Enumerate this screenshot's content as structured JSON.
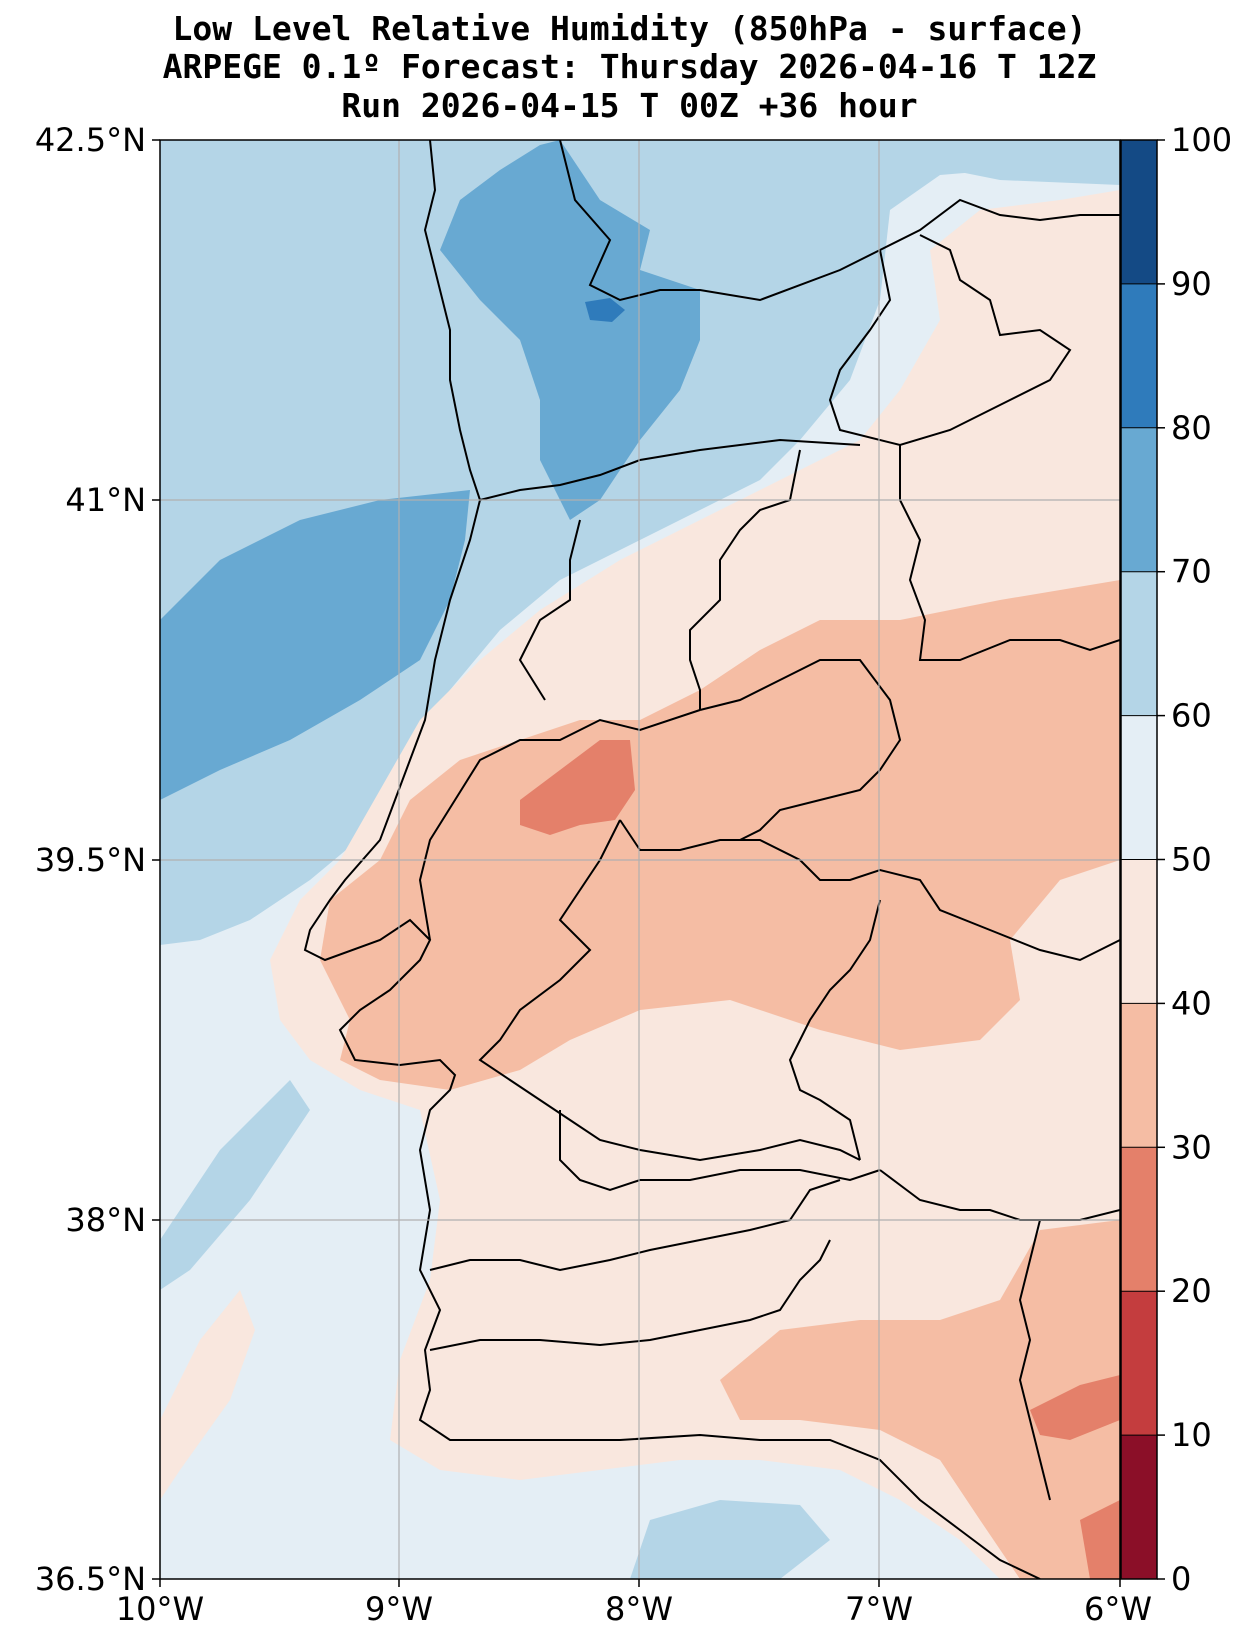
{
  "title": {
    "line1": "Low Level Relative Humidity (850hPa - surface)",
    "line2": "ARPEGE 0.1º Forecast: Thursday 2026-04-16 T 12Z",
    "line3": "Run 2026-04-15 T 00Z +36 hour"
  },
  "axes": {
    "lon_ticks": [
      "10°W",
      "9°W",
      "8°W",
      "7°W",
      "6°W"
    ],
    "lat_ticks": [
      "42.5°N",
      "41°N",
      "39.5°N",
      "38°N",
      "36.5°N"
    ],
    "lon_range": [
      -10,
      -6
    ],
    "lat_range": [
      36.5,
      42.5
    ],
    "grid": true
  },
  "colorbar": {
    "ticks": [
      "100",
      "90",
      "80",
      "70",
      "60",
      "50",
      "40",
      "30",
      "20",
      "10",
      "0"
    ],
    "colors_top_to_bottom": [
      "#144a85",
      "#2f7bbb",
      "#68a9d2",
      "#b4d5e7",
      "#e4eef5",
      "#f9e7de",
      "#f5bda4",
      "#e4806a",
      "#c43d3e",
      "#8b0f28"
    ]
  },
  "fill_colors": {
    "very_humid": "#68a9d2",
    "humid": "#b4d5e7",
    "moderate": "#e4eef5",
    "dry": "#f9e7de",
    "drier": "#f5bda4",
    "driest": "#e4806a",
    "peak": "#2f7bbb"
  }
}
